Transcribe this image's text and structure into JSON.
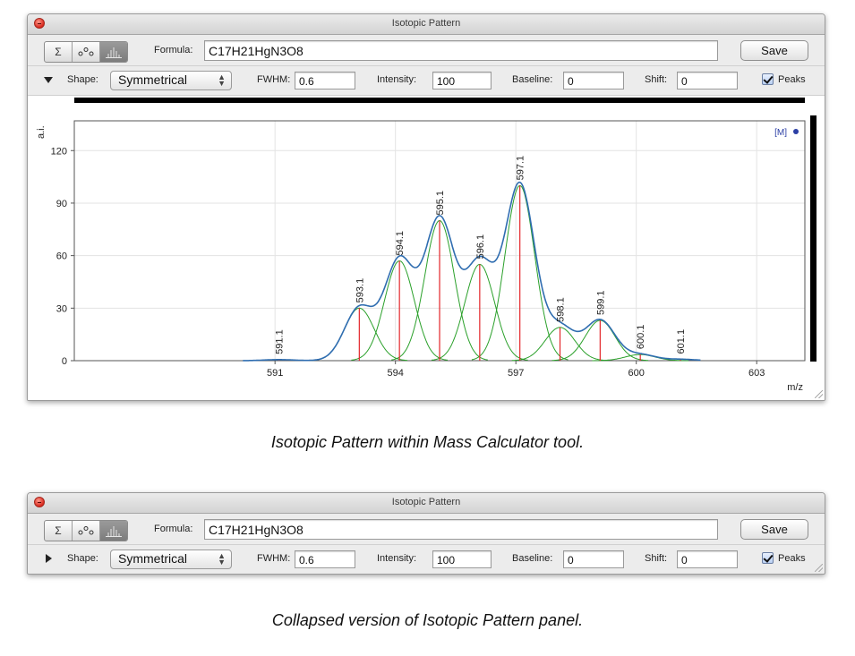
{
  "panels": [
    {
      "title": "Isotopic Pattern",
      "toolbar": {
        "sum_icon_glyph": "Σ",
        "formula_label": "Formula:",
        "formula_value": "C17H21HgN3O8",
        "save_label": "Save"
      },
      "options": {
        "shape_label": "Shape:",
        "shape_value": "Symmetrical",
        "fwhm_label": "FWHM:",
        "fwhm_value": "0.6",
        "intensity_label": "Intensity:",
        "intensity_value": "100",
        "baseline_label": "Baseline:",
        "baseline_value": "0",
        "shift_label": "Shift:",
        "shift_value": "0",
        "peaks_label": "Peaks"
      }
    },
    {
      "title": "Isotopic Pattern",
      "toolbar": {
        "sum_icon_glyph": "Σ",
        "formula_label": "Formula:",
        "formula_value": "C17H21HgN3O8",
        "save_label": "Save"
      },
      "options": {
        "shape_label": "Shape:",
        "shape_value": "Symmetrical",
        "fwhm_label": "FWHM:",
        "fwhm_value": "0.6",
        "intensity_label": "Intensity:",
        "intensity_value": "100",
        "baseline_label": "Baseline:",
        "baseline_value": "0",
        "shift_label": "Shift:",
        "shift_value": "0",
        "peaks_label": "Peaks"
      }
    }
  ],
  "captions": {
    "expanded": "Isotopic Pattern within Mass Calculator tool.",
    "collapsed": "Collapsed version of Isotopic Pattern panel."
  },
  "chart_data": {
    "type": "line",
    "xlabel": "m/z",
    "ylabel": "a.i.",
    "xlim": [
      586.0,
      604.2
    ],
    "ylim": [
      0,
      137
    ],
    "xticks": [
      591,
      594,
      597,
      600,
      603
    ],
    "yticks": [
      0,
      30,
      60,
      90,
      120
    ],
    "grid": true,
    "legend": {
      "entries": [
        "[M]"
      ],
      "placement": "top-right"
    },
    "colors": {
      "envelope": "#2f6db0",
      "components": "#2aa02a",
      "sticks": "#e3262a",
      "legend_dot": "#2b3fa5"
    },
    "peaks": [
      {
        "mz": 591.1,
        "label": "591.1",
        "intensity": 0.6
      },
      {
        "mz": 593.1,
        "label": "593.1",
        "intensity": 30
      },
      {
        "mz": 594.1,
        "label": "594.1",
        "intensity": 57
      },
      {
        "mz": 595.1,
        "label": "595.1",
        "intensity": 80
      },
      {
        "mz": 596.1,
        "label": "596.1",
        "intensity": 55
      },
      {
        "mz": 597.1,
        "label": "597.1",
        "intensity": 100
      },
      {
        "mz": 598.1,
        "label": "598.1",
        "intensity": 19
      },
      {
        "mz": 599.1,
        "label": "599.1",
        "intensity": 23
      },
      {
        "mz": 600.1,
        "label": "600.1",
        "intensity": 3.5
      },
      {
        "mz": 601.1,
        "label": "601.1",
        "intensity": 0.8
      }
    ]
  }
}
